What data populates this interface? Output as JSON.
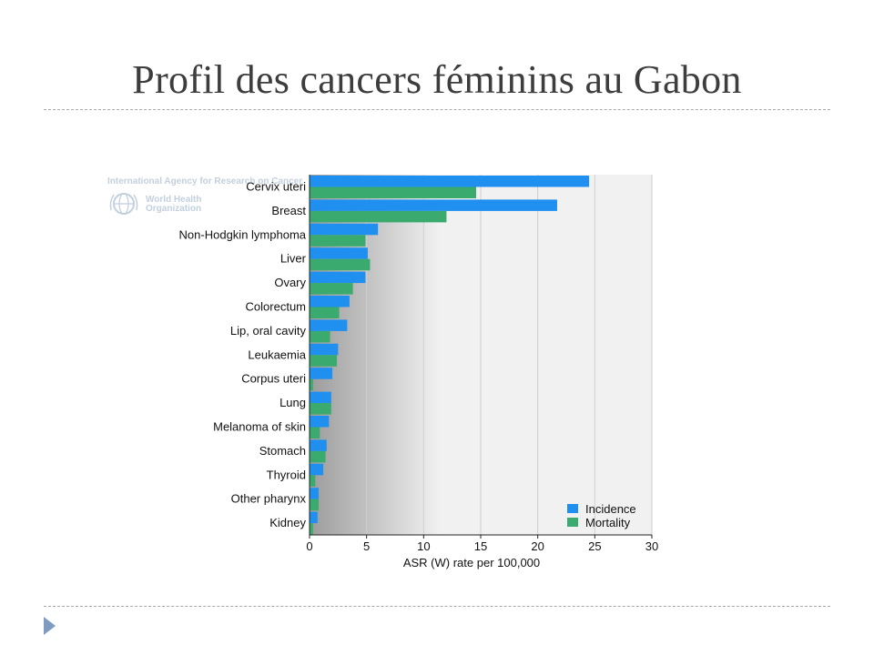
{
  "slide": {
    "title": "Profil des cancers féminins au Gabon"
  },
  "logo": {
    "agency_text": "International Agency for Research on Cancer",
    "who_text": "World Health\nOrganization",
    "icon": "who-globe-icon"
  },
  "colors": {
    "incidence": "#1f8ff0",
    "mortality": "#3aaa6e",
    "title": "#3d3d3d",
    "bullet": "#7f9bbf"
  },
  "chart_data": {
    "type": "bar",
    "orientation": "horizontal",
    "categories": [
      "Cervix uteri",
      "Breast",
      "Non-Hodgkin lymphoma",
      "Liver",
      "Ovary",
      "Colorectum",
      "Lip, oral cavity",
      "Leukaemia",
      "Corpus uteri",
      "Lung",
      "Melanoma of skin",
      "Stomach",
      "Thyroid",
      "Other pharynx",
      "Kidney"
    ],
    "series": [
      {
        "name": "Incidence",
        "values": [
          24.5,
          21.7,
          6.0,
          5.1,
          4.9,
          3.5,
          3.3,
          2.5,
          2.0,
          1.9,
          1.7,
          1.5,
          1.2,
          0.8,
          0.7
        ]
      },
      {
        "name": "Mortality",
        "values": [
          14.6,
          12.0,
          4.9,
          5.3,
          3.8,
          2.6,
          1.8,
          2.4,
          0.3,
          1.9,
          0.9,
          1.4,
          0.5,
          0.8,
          0.3
        ]
      }
    ],
    "xlabel": "ASR (W) rate per 100,000",
    "xlim": [
      0,
      30
    ],
    "xticks": [
      0,
      5,
      10,
      15,
      20,
      25,
      30
    ],
    "grid": true,
    "legend_position": "bottom-right"
  }
}
